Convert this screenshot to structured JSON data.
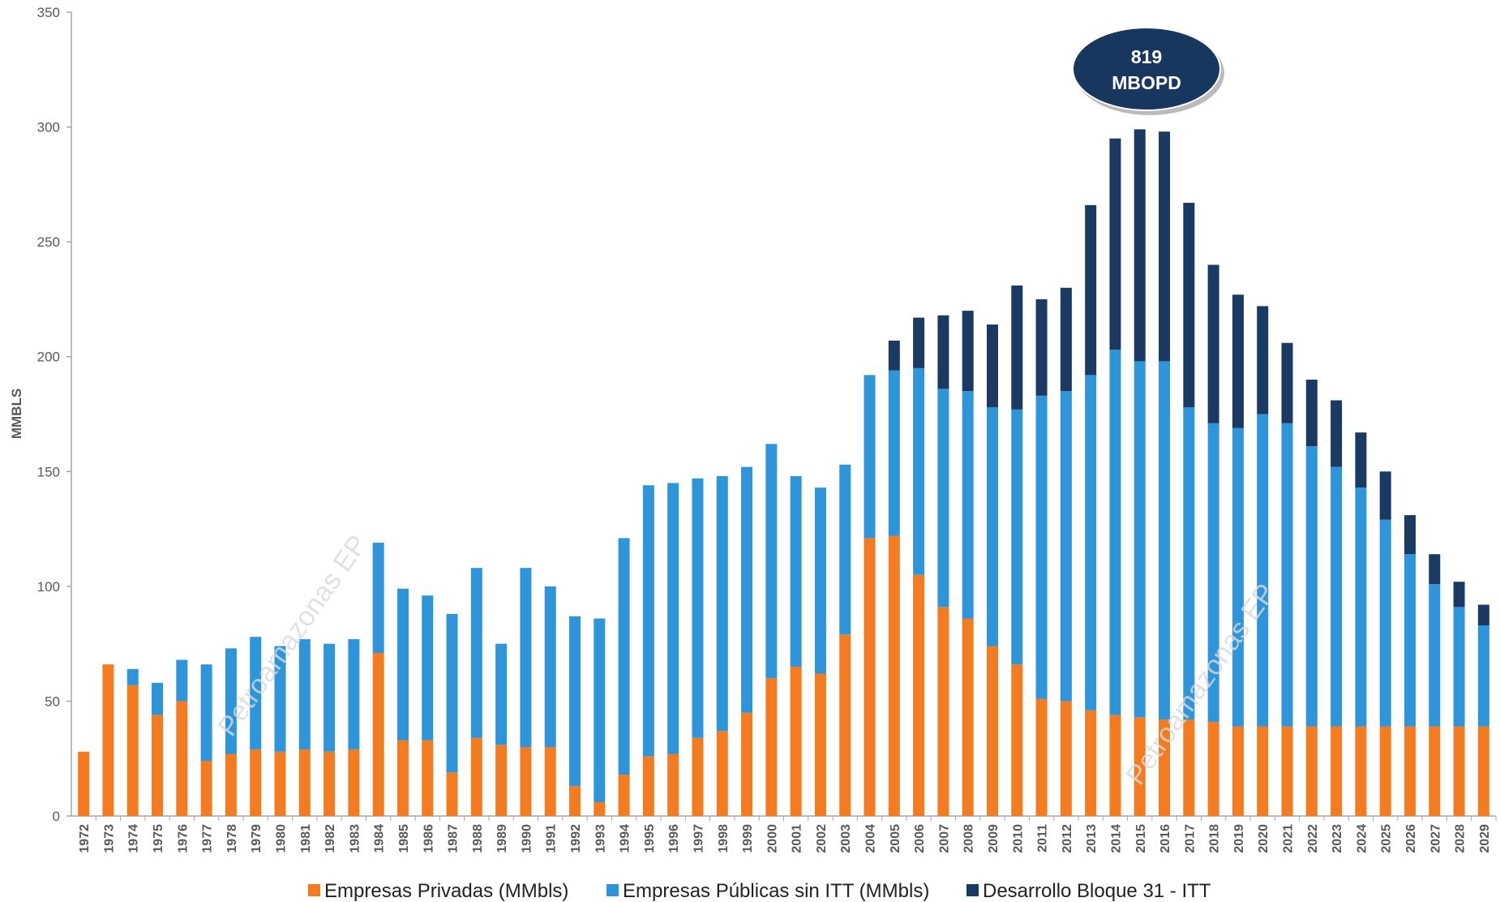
{
  "chart_data": {
    "type": "stacked_bar",
    "y_label": "MMBLS",
    "annotation_lines": [
      "819",
      "MBOPD"
    ],
    "watermark": "Petroamazonas EP",
    "categories": [
      "1972",
      "1973",
      "1974",
      "1975",
      "1976",
      "1977",
      "1978",
      "1979",
      "1980",
      "1981",
      "1982",
      "1983",
      "1984",
      "1985",
      "1986",
      "1987",
      "1988",
      "1989",
      "1990",
      "1991",
      "1992",
      "1993",
      "1994",
      "1995",
      "1996",
      "1997",
      "1998",
      "1999",
      "2000",
      "2001",
      "2002",
      "2003",
      "2004",
      "2005",
      "2006",
      "2007",
      "2008",
      "2009",
      "2010",
      "2011",
      "2012",
      "2013",
      "2014",
      "2015",
      "2016",
      "2017",
      "2018",
      "2019",
      "2020",
      "2021",
      "2022",
      "2023",
      "2024",
      "2025",
      "2026",
      "2027",
      "2028",
      "2029"
    ],
    "series": [
      {
        "name": "Empresas Privadas (MMbls)",
        "color": "#f47b20",
        "values": [
          28,
          66,
          57,
          44,
          50,
          24,
          27,
          29,
          28,
          29,
          28,
          29,
          71,
          33,
          33,
          19,
          34,
          31,
          30,
          30,
          13,
          6,
          18,
          26,
          27,
          34,
          37,
          45,
          60,
          65,
          62,
          79,
          121,
          122,
          105,
          91,
          86,
          74,
          66,
          51,
          50,
          46,
          44,
          43,
          42,
          42,
          41,
          39,
          39,
          39,
          39,
          39,
          39,
          39,
          39,
          39,
          39,
          39
        ]
      },
      {
        "name": "Empresas Públicas sin ITT (MMbls)",
        "color": "#2e95db",
        "values": [
          null,
          null,
          7,
          14,
          18,
          42,
          46,
          49,
          46,
          48,
          47,
          48,
          48,
          66,
          63,
          69,
          74,
          44,
          78,
          70,
          74,
          80,
          103,
          118,
          118,
          113,
          111,
          107,
          102,
          83,
          81,
          74,
          71,
          72,
          90,
          95,
          99,
          104,
          111,
          132,
          135,
          146,
          159,
          155,
          156,
          136,
          130,
          130,
          136,
          132,
          122,
          113,
          104,
          90,
          75,
          62,
          52,
          44
        ]
      },
      {
        "name": "Desarrollo Bloque 31 - ITT",
        "color": "#1b3a63",
        "values": [
          null,
          null,
          null,
          null,
          null,
          null,
          null,
          null,
          null,
          null,
          null,
          null,
          null,
          null,
          null,
          null,
          null,
          null,
          null,
          null,
          null,
          null,
          null,
          null,
          null,
          null,
          null,
          null,
          null,
          null,
          null,
          null,
          null,
          13,
          22,
          32,
          35,
          36,
          54,
          42,
          45,
          74,
          92,
          101,
          100,
          89,
          69,
          58,
          47,
          35,
          29,
          29,
          24,
          21,
          17,
          13,
          11,
          9
        ]
      }
    ],
    "ylim": [
      0,
      350
    ],
    "yticks": [
      0,
      50,
      100,
      150,
      200,
      250,
      300,
      350
    ],
    "grid": false
  }
}
